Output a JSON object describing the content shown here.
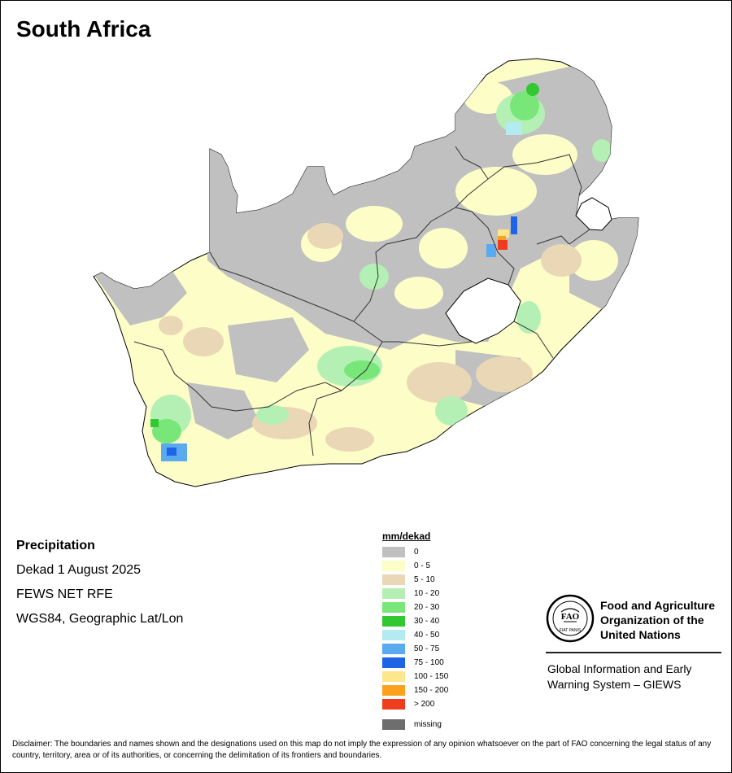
{
  "title": "South Africa",
  "info": {
    "variable": "Precipitation",
    "period": "Dekad 1 August 2025",
    "source": "FEWS NET RFE",
    "projection": "WGS84, Geographic Lat/Lon"
  },
  "legend": {
    "title": "mm/dekad",
    "classes": [
      {
        "label": "0",
        "color": "#c0c0c0"
      },
      {
        "label": "0 - 5",
        "color": "#fdfdc8"
      },
      {
        "label": "5 - 10",
        "color": "#e9d7b5"
      },
      {
        "label": "10 - 20",
        "color": "#b4f0b4"
      },
      {
        "label": "20 - 30",
        "color": "#78e678"
      },
      {
        "label": "30 - 40",
        "color": "#32c832"
      },
      {
        "label": "40 - 50",
        "color": "#b4ebf0"
      },
      {
        "label": "50 - 75",
        "color": "#5aaaf0"
      },
      {
        "label": "75 - 100",
        "color": "#1e64e6"
      },
      {
        "label": "100 - 150",
        "color": "#fde68c"
      },
      {
        "label": "150 - 200",
        "color": "#fda01e"
      },
      {
        "label": "> 200",
        "color": "#f03c1e"
      }
    ],
    "missing": {
      "label": "missing",
      "color": "#6e6e6e"
    }
  },
  "organization": {
    "name": "Food and Agriculture Organization of the United Nations",
    "program": "Global Information and Early Warning System – GIEWS",
    "logo_text": "FAO",
    "motto": "FIAT PANIS"
  },
  "disclaimer": "Disclaimer: The boundaries and names shown and the designations used on this map do not imply the expression of any opinion whatsoever on the part of FAO concerning the legal status of any country, territory, area or of its authorities, or concerning the delimitation of its frontiers and boundaries."
}
